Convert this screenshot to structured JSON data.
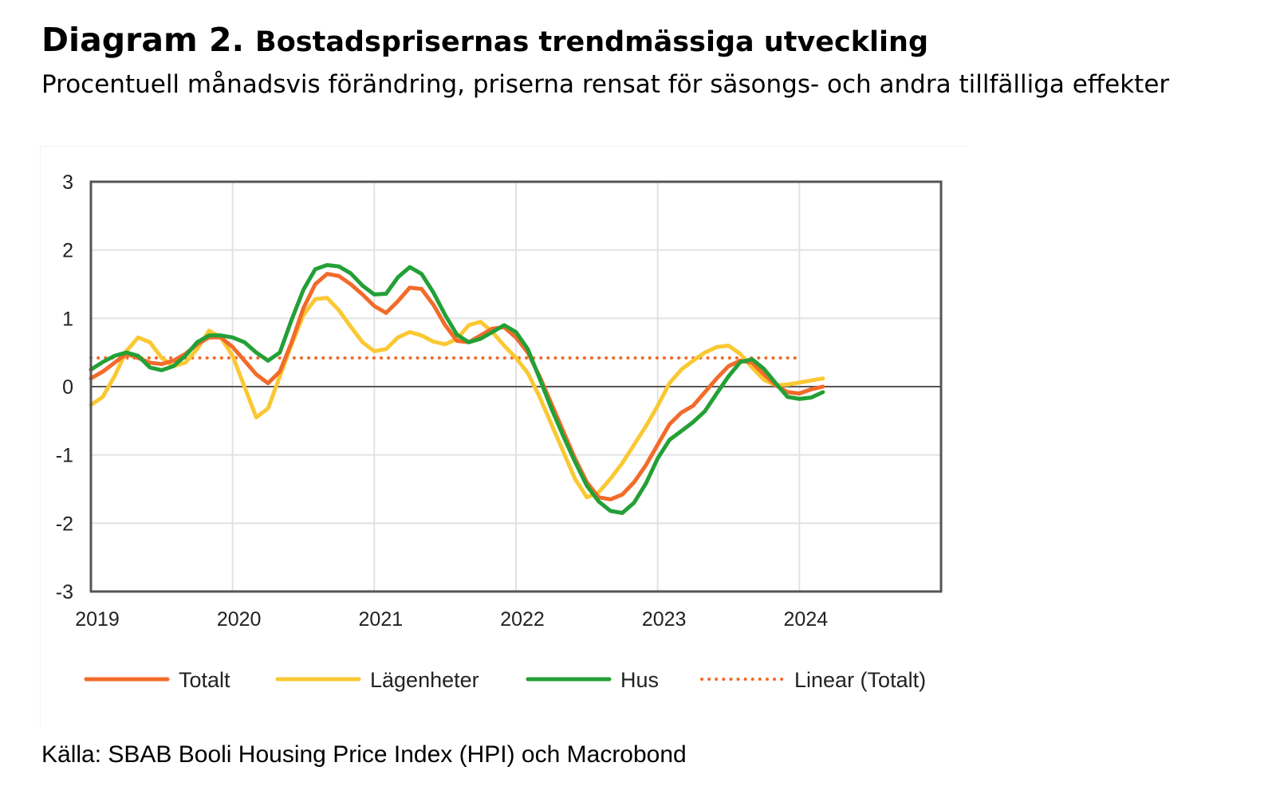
{
  "header": {
    "title_lead": "Diagram 2.",
    "title_rest": "Bostadsprisernas trendmässiga utveckling",
    "subtitle": "Procentuell månadsvis förändring, priserna rensat för säsongs- och andra tillfälliga effekter"
  },
  "source": "Källa: SBAB Booli Housing Price Index (HPI) och Macrobond",
  "chart_data": {
    "type": "line",
    "title": "",
    "xlabel": "",
    "ylabel": "",
    "xlim": [
      2019,
      2025
    ],
    "ylim": [
      -3,
      3
    ],
    "x_ticks": [
      "2019",
      "2020",
      "2021",
      "2022",
      "2023",
      "2024"
    ],
    "y_ticks": [
      "3",
      "2",
      "1",
      "0",
      "-1",
      "-2",
      "-3"
    ],
    "grid": true,
    "legend_position": "bottom",
    "x_step_months": 1,
    "x_start": "2019-01",
    "series": [
      {
        "name": "Totalt",
        "color": "#f26b2a",
        "style": "solid",
        "values": [
          0.12,
          0.22,
          0.35,
          0.48,
          0.42,
          0.35,
          0.33,
          0.38,
          0.48,
          0.62,
          0.72,
          0.72,
          0.58,
          0.38,
          0.18,
          0.05,
          0.22,
          0.65,
          1.15,
          1.5,
          1.65,
          1.62,
          1.5,
          1.35,
          1.18,
          1.08,
          1.25,
          1.45,
          1.43,
          1.2,
          0.9,
          0.67,
          0.65,
          0.75,
          0.85,
          0.87,
          0.72,
          0.5,
          0.15,
          -0.25,
          -0.65,
          -1.05,
          -1.4,
          -1.62,
          -1.65,
          -1.58,
          -1.4,
          -1.15,
          -0.85,
          -0.55,
          -0.38,
          -0.28,
          -0.08,
          0.12,
          0.3,
          0.38,
          0.35,
          0.18,
          0.02,
          -0.08,
          -0.1,
          -0.04,
          0.0
        ]
      },
      {
        "name": "Lägenheter",
        "color": "#fac832",
        "style": "solid",
        "values": [
          -0.27,
          -0.15,
          0.15,
          0.52,
          0.72,
          0.65,
          0.42,
          0.3,
          0.35,
          0.55,
          0.82,
          0.72,
          0.45,
          0.0,
          -0.45,
          -0.32,
          0.15,
          0.62,
          1.05,
          1.28,
          1.3,
          1.12,
          0.88,
          0.65,
          0.52,
          0.55,
          0.72,
          0.8,
          0.75,
          0.66,
          0.62,
          0.7,
          0.9,
          0.95,
          0.8,
          0.6,
          0.42,
          0.2,
          -0.15,
          -0.55,
          -0.95,
          -1.35,
          -1.62,
          -1.55,
          -1.35,
          -1.12,
          -0.85,
          -0.58,
          -0.28,
          0.05,
          0.25,
          0.38,
          0.5,
          0.58,
          0.6,
          0.48,
          0.28,
          0.1,
          0.02,
          0.03,
          0.06,
          0.09,
          0.12
        ]
      },
      {
        "name": "Hus",
        "color": "#23a036",
        "style": "solid",
        "values": [
          0.25,
          0.36,
          0.45,
          0.5,
          0.45,
          0.28,
          0.24,
          0.3,
          0.45,
          0.65,
          0.75,
          0.75,
          0.72,
          0.65,
          0.5,
          0.38,
          0.5,
          0.98,
          1.42,
          1.72,
          1.78,
          1.76,
          1.66,
          1.48,
          1.35,
          1.36,
          1.6,
          1.75,
          1.65,
          1.38,
          1.05,
          0.76,
          0.65,
          0.7,
          0.8,
          0.9,
          0.8,
          0.55,
          0.12,
          -0.32,
          -0.72,
          -1.1,
          -1.45,
          -1.68,
          -1.82,
          -1.85,
          -1.7,
          -1.42,
          -1.05,
          -0.78,
          -0.65,
          -0.52,
          -0.36,
          -0.1,
          0.15,
          0.36,
          0.4,
          0.26,
          0.05,
          -0.15,
          -0.18,
          -0.16,
          -0.08
        ]
      },
      {
        "name": "Linear (Totalt)",
        "color": "#f26b2a",
        "style": "dotted",
        "x_range": [
          "2019-01",
          "2024-01"
        ],
        "values": [
          0.42,
          0.42
        ]
      }
    ]
  }
}
